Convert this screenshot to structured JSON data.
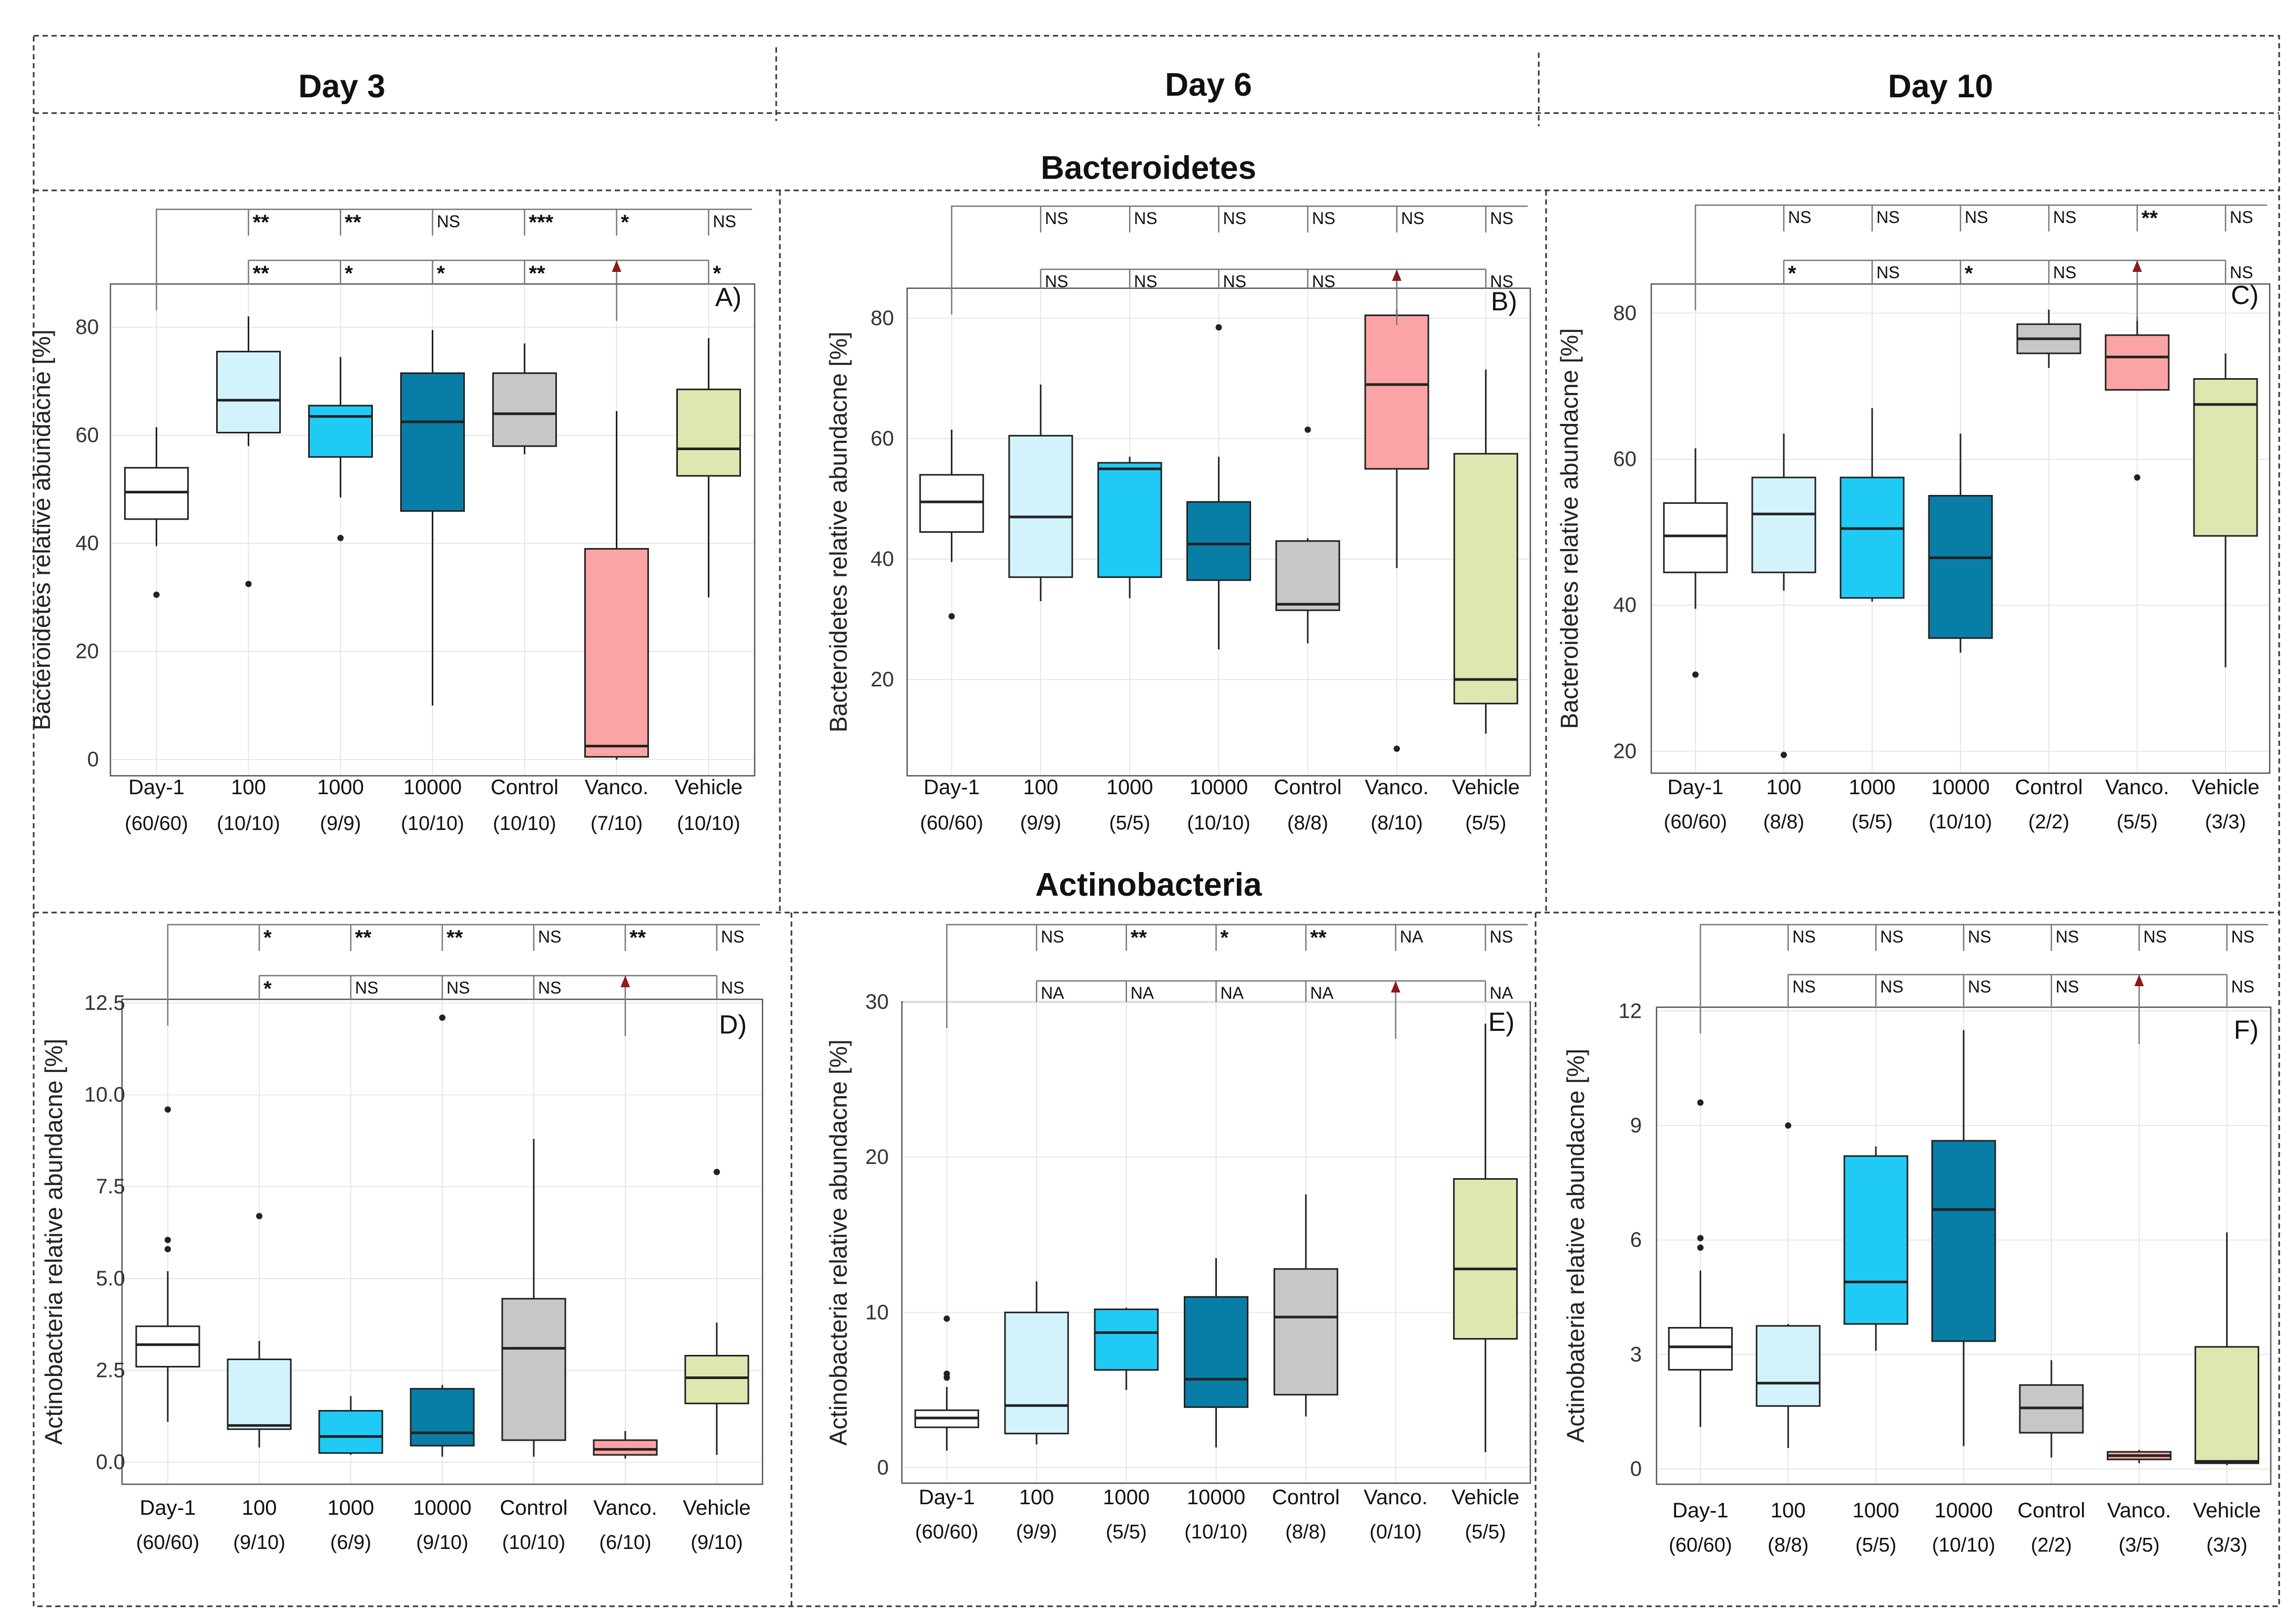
{
  "columns": [
    "Day 3",
    "Day 6",
    "Day 10"
  ],
  "row_titles": [
    "Bacteroidetes",
    "Actinobacteria"
  ],
  "categories": [
    "Day-1",
    "100",
    "1000",
    "10000",
    "Control",
    "Vanco.",
    "Vehicle"
  ],
  "colors": {
    "Day-1": "#ffffff",
    "100": "#d3f3fc",
    "1000": "#1fcbf5",
    "10000": "#087ea6",
    "Control": "#c7c7c7",
    "Vanco.": "#fba4a5",
    "Vehicle": "#dde7af"
  },
  "chart_data": [
    {
      "type": "box",
      "panel": "A)",
      "day": "Day 3",
      "ylabel": "Bacteroidetes relative abundacne [%]",
      "ylim": [
        -3,
        88
      ],
      "yticks": [
        0,
        20,
        40,
        60,
        80
      ],
      "ytick_labels": [
        "0",
        "20",
        "40",
        "60",
        "80"
      ],
      "xlabels": [
        "Day-1",
        "100",
        "1000",
        "10000",
        "Control",
        "Vanco.",
        "Vehicle"
      ],
      "n_labels": [
        "(60/60)",
        "(10/10)",
        "(9/9)",
        "(10/10)",
        "(10/10)",
        "(7/10)",
        "(10/10)"
      ],
      "boxes": [
        {
          "min": 39.5,
          "q1": 44.5,
          "median": 49.5,
          "q3": 54,
          "max": 61.5,
          "outliers": [
            30.5
          ]
        },
        {
          "min": 58,
          "q1": 60.5,
          "median": 66.5,
          "q3": 75.5,
          "max": 82,
          "outliers": [
            32.5
          ]
        },
        {
          "min": 48.5,
          "q1": 56,
          "median": 63.5,
          "q3": 65.5,
          "max": 74.5,
          "outliers": [
            41
          ]
        },
        {
          "min": 10,
          "q1": 46,
          "median": 62.5,
          "q3": 71.5,
          "max": 79.5,
          "outliers": []
        },
        {
          "min": 56.5,
          "q1": 58,
          "median": 64,
          "q3": 71.5,
          "max": 77,
          "outliers": []
        },
        {
          "min": 0,
          "q1": 0.5,
          "median": 2.5,
          "q3": 39,
          "max": 64.5,
          "outliers": []
        },
        {
          "min": 30,
          "q1": 52.5,
          "median": 57.5,
          "q3": 68.5,
          "max": 78,
          "outliers": []
        }
      ],
      "sig_top": [
        "**",
        "**",
        "NS",
        "***",
        "*",
        "NS"
      ],
      "sig_bottom": [
        "**",
        "*",
        "*",
        "**",
        "",
        "*"
      ]
    },
    {
      "type": "box",
      "panel": "B)",
      "day": "Day 6",
      "ylabel": "Bacteroidetes relative abundacne [%]",
      "ylim": [
        4,
        85
      ],
      "yticks": [
        20,
        40,
        60,
        80
      ],
      "ytick_labels": [
        "20",
        "40",
        "60",
        "80"
      ],
      "xlabels": [
        "Day-1",
        "100",
        "1000",
        "10000",
        "Control",
        "Vanco.",
        "Vehicle"
      ],
      "n_labels": [
        "(60/60)",
        "(9/9)",
        "(5/5)",
        "(10/10)",
        "(8/8)",
        "(8/10)",
        "(5/5)"
      ],
      "boxes": [
        {
          "min": 39.5,
          "q1": 44.5,
          "median": 49.5,
          "q3": 54,
          "max": 61.5,
          "outliers": [
            30.5
          ]
        },
        {
          "min": 33,
          "q1": 37,
          "median": 47,
          "q3": 60.5,
          "max": 69,
          "outliers": []
        },
        {
          "min": 33.5,
          "q1": 37,
          "median": 55,
          "q3": 56,
          "max": 57,
          "outliers": []
        },
        {
          "min": 25,
          "q1": 36.5,
          "median": 42.5,
          "q3": 49.5,
          "max": 57,
          "outliers": [
            78.5
          ]
        },
        {
          "min": 26,
          "q1": 31.5,
          "median": 32.5,
          "q3": 43,
          "max": 43.5,
          "outliers": [
            61.5
          ]
        },
        {
          "min": 38.5,
          "q1": 55,
          "median": 69,
          "q3": 80.5,
          "max": 81.5,
          "outliers": [
            8.5
          ]
        },
        {
          "min": 11,
          "q1": 16,
          "median": 20,
          "q3": 57.5,
          "max": 71.5,
          "outliers": []
        }
      ],
      "sig_top": [
        "NS",
        "NS",
        "NS",
        "NS",
        "NS",
        "NS"
      ],
      "sig_bottom": [
        "NS",
        "NS",
        "NS",
        "NS",
        "",
        "NS"
      ]
    },
    {
      "type": "box",
      "panel": "C)",
      "day": "Day 10",
      "ylabel": "Bacteroidetes relative abundacne [%]",
      "ylim": [
        17,
        84
      ],
      "yticks": [
        20,
        40,
        60,
        80
      ],
      "ytick_labels": [
        "20",
        "40",
        "60",
        "80"
      ],
      "xlabels": [
        "Day-1",
        "100",
        "1000",
        "10000",
        "Control",
        "Vanco.",
        "Vehicle"
      ],
      "n_labels": [
        "(60/60)",
        "(8/8)",
        "(5/5)",
        "(10/10)",
        "(2/2)",
        "(5/5)",
        "(3/3)"
      ],
      "boxes": [
        {
          "min": 39.5,
          "q1": 44.5,
          "median": 49.5,
          "q3": 54,
          "max": 61.5,
          "outliers": [
            30.5
          ]
        },
        {
          "min": 42,
          "q1": 44.5,
          "median": 52.5,
          "q3": 57.5,
          "max": 63.5,
          "outliers": [
            19.5
          ]
        },
        {
          "min": 40.5,
          "q1": 41,
          "median": 50.5,
          "q3": 57.5,
          "max": 67,
          "outliers": []
        },
        {
          "min": 33.5,
          "q1": 35.5,
          "median": 46.5,
          "q3": 55,
          "max": 63.5,
          "outliers": []
        },
        {
          "min": 72.5,
          "q1": 74.5,
          "median": 76.5,
          "q3": 78.5,
          "max": 80.5,
          "outliers": []
        },
        {
          "min": 69.5,
          "q1": 69.5,
          "median": 74,
          "q3": 77,
          "max": 79.5,
          "outliers": [
            57.5
          ]
        },
        {
          "min": 31.5,
          "q1": 49.5,
          "median": 67.5,
          "q3": 71,
          "max": 74.5,
          "outliers": []
        }
      ],
      "sig_top": [
        "NS",
        "NS",
        "NS",
        "NS",
        "**",
        "NS"
      ],
      "sig_bottom": [
        "*",
        "NS",
        "*",
        "NS",
        "",
        "NS"
      ]
    },
    {
      "type": "box",
      "panel": "D)",
      "day": "Day 3",
      "ylabel": "Actinobacteria relative abundacne [%]",
      "ylim": [
        -0.6,
        12.6
      ],
      "yticks": [
        0,
        2.5,
        5,
        7.5,
        10,
        12.5
      ],
      "ytick_labels": [
        "0.0",
        "2.5",
        "5.0",
        "7.5",
        "10.0",
        "12.5"
      ],
      "xlabels": [
        "Day-1",
        "100",
        "1000",
        "10000",
        "Control",
        "Vanco.",
        "Vehicle"
      ],
      "n_labels": [
        "(60/60)",
        "(9/10)",
        "(6/9)",
        "(9/10)",
        "(10/10)",
        "(6/10)",
        "(9/10)"
      ],
      "boxes": [
        {
          "min": 1.1,
          "q1": 2.6,
          "median": 3.2,
          "q3": 3.7,
          "max": 5.2,
          "outliers": [
            5.8,
            6.05,
            9.6
          ]
        },
        {
          "min": 0.4,
          "q1": 0.9,
          "median": 1.0,
          "q3": 2.8,
          "max": 3.3,
          "outliers": [
            6.7
          ]
        },
        {
          "min": 0.2,
          "q1": 0.25,
          "median": 0.7,
          "q3": 1.4,
          "max": 1.8,
          "outliers": []
        },
        {
          "min": 0.15,
          "q1": 0.45,
          "median": 0.8,
          "q3": 2.0,
          "max": 2.1,
          "outliers": [
            12.1
          ]
        },
        {
          "min": 0.15,
          "q1": 0.6,
          "median": 3.1,
          "q3": 4.45,
          "max": 8.8,
          "outliers": []
        },
        {
          "min": 0.1,
          "q1": 0.2,
          "median": 0.35,
          "q3": 0.6,
          "max": 0.85,
          "outliers": []
        },
        {
          "min": 0.2,
          "q1": 1.6,
          "median": 2.3,
          "q3": 2.9,
          "max": 3.8,
          "outliers": [
            7.9
          ]
        }
      ],
      "sig_top": [
        "*",
        "**",
        "**",
        "NS",
        "**",
        "NS"
      ],
      "sig_bottom": [
        "*",
        "NS",
        "NS",
        "NS",
        "",
        "NS"
      ]
    },
    {
      "type": "box",
      "panel": "E)",
      "day": "Day 6",
      "ylabel": "Actinobacteria relative abundacne [%]",
      "ylim": [
        -1,
        30
      ],
      "yticks": [
        0,
        10,
        20,
        30
      ],
      "ytick_labels": [
        "0",
        "10",
        "20",
        "30"
      ],
      "xlabels": [
        "Day-1",
        "100",
        "1000",
        "10000",
        "Control",
        "Vanco.",
        "Vehicle"
      ],
      "n_labels": [
        "(60/60)",
        "(9/9)",
        "(5/5)",
        "(10/10)",
        "(8/8)",
        "(0/10)",
        "(5/5)"
      ],
      "boxes": [
        {
          "min": 1.1,
          "q1": 2.6,
          "median": 3.2,
          "q3": 3.7,
          "max": 5.2,
          "outliers": [
            5.8,
            6.05,
            9.6
          ]
        },
        {
          "min": 1.5,
          "q1": 2.2,
          "median": 4.0,
          "q3": 10.0,
          "max": 12.0,
          "outliers": []
        },
        {
          "min": 5.0,
          "q1": 6.3,
          "median": 8.7,
          "q3": 10.2,
          "max": 10.3,
          "outliers": []
        },
        {
          "min": 1.3,
          "q1": 3.9,
          "median": 5.7,
          "q3": 11.0,
          "max": 13.5,
          "outliers": []
        },
        {
          "min": 3.3,
          "q1": 4.7,
          "median": 9.7,
          "q3": 12.8,
          "max": 17.6,
          "outliers": []
        },
        null,
        {
          "min": 1.0,
          "q1": 8.3,
          "median": 12.8,
          "q3": 18.6,
          "max": 28.6,
          "outliers": []
        }
      ],
      "sig_top": [
        "NS",
        "**",
        "*",
        "**",
        "NA",
        "NS"
      ],
      "sig_bottom": [
        "NA",
        "NA",
        "NA",
        "NA",
        "",
        "NA"
      ]
    },
    {
      "type": "box",
      "panel": "F)",
      "day": "Day 10",
      "ylabel": "Actinobateria relative abundacne [%]",
      "ylim": [
        -0.4,
        12.1
      ],
      "yticks": [
        0,
        3,
        6,
        9,
        12
      ],
      "ytick_labels": [
        "0",
        "3",
        "6",
        "9",
        "12"
      ],
      "xlabels": [
        "Day-1",
        "100",
        "1000",
        "10000",
        "Control",
        "Vanco.",
        "Vehicle"
      ],
      "n_labels": [
        "(60/60)",
        "(8/8)",
        "(5/5)",
        "(10/10)",
        "(2/2)",
        "(3/5)",
        "(3/3)"
      ],
      "boxes": [
        {
          "min": 1.1,
          "q1": 2.6,
          "median": 3.2,
          "q3": 3.7,
          "max": 5.2,
          "outliers": [
            5.8,
            6.05,
            9.6
          ]
        },
        {
          "min": 0.55,
          "q1": 1.65,
          "median": 2.25,
          "q3": 3.75,
          "max": 3.8,
          "outliers": [
            9.0
          ]
        },
        {
          "min": 3.1,
          "q1": 3.8,
          "median": 4.9,
          "q3": 8.2,
          "max": 8.45,
          "outliers": []
        },
        {
          "min": 0.6,
          "q1": 3.35,
          "median": 6.8,
          "q3": 8.6,
          "max": 11.5,
          "outliers": []
        },
        {
          "min": 0.3,
          "q1": 0.95,
          "median": 1.6,
          "q3": 2.2,
          "max": 2.85,
          "outliers": []
        },
        {
          "min": 0.15,
          "q1": 0.25,
          "median": 0.35,
          "q3": 0.45,
          "max": 0.5,
          "outliers": []
        },
        {
          "min": 0.1,
          "q1": 0.15,
          "median": 0.2,
          "q3": 3.2,
          "max": 6.2,
          "outliers": []
        }
      ],
      "sig_top": [
        "NS",
        "NS",
        "NS",
        "NS",
        "NS",
        "NS"
      ],
      "sig_bottom": [
        "NS",
        "NS",
        "NS",
        "NS",
        "",
        "NS"
      ]
    }
  ]
}
